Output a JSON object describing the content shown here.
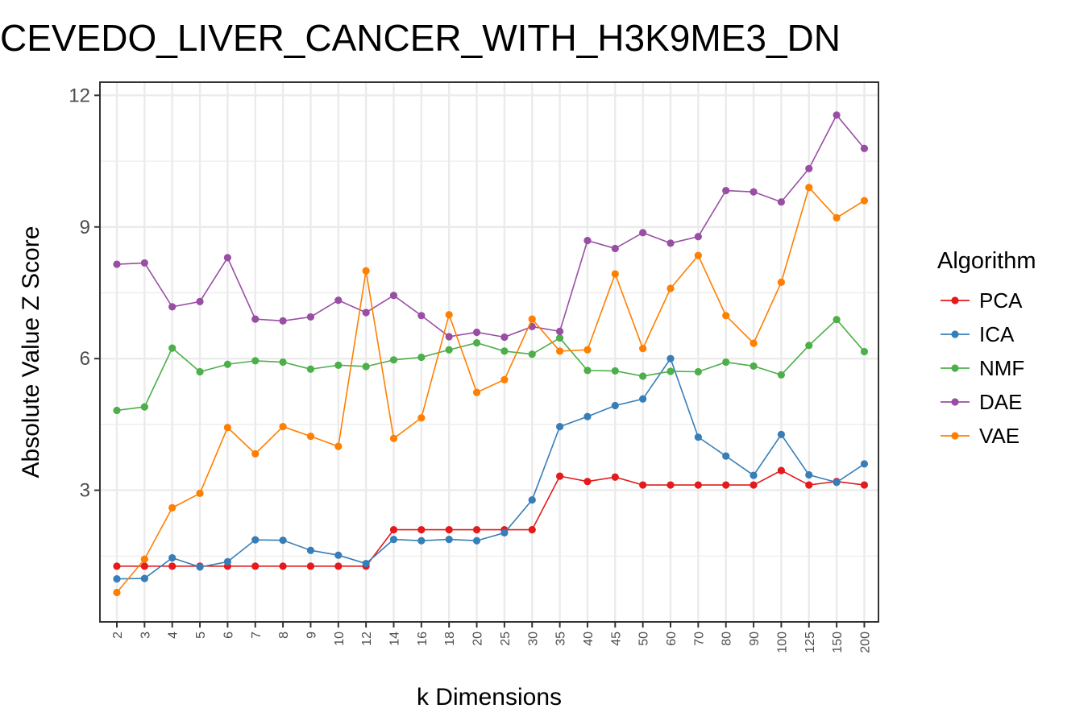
{
  "chart_data": {
    "type": "line",
    "title": "CEVEDO_LIVER_CANCER_WITH_H3K9ME3_DN",
    "xlabel": "k Dimensions",
    "ylabel": "Absolute Value Z Score",
    "categories": [
      "2",
      "3",
      "4",
      "5",
      "6",
      "7",
      "8",
      "9",
      "10",
      "12",
      "14",
      "16",
      "18",
      "20",
      "25",
      "30",
      "35",
      "40",
      "45",
      "50",
      "60",
      "70",
      "80",
      "90",
      "100",
      "125",
      "150",
      "200"
    ],
    "ylim": [
      0.0,
      12.3
    ],
    "yticks": [
      "3",
      "6",
      "9",
      "12"
    ],
    "grid": true,
    "legend": {
      "title": "Algorithm",
      "position": "right"
    },
    "series": [
      {
        "name": "PCA",
        "color": "#e41a1c",
        "values": [
          1.27,
          1.27,
          1.27,
          1.27,
          1.27,
          1.27,
          1.27,
          1.27,
          1.27,
          1.27,
          2.1,
          2.1,
          2.1,
          2.1,
          2.1,
          2.1,
          3.32,
          3.2,
          3.3,
          3.12,
          3.12,
          3.12,
          3.12,
          3.12,
          3.45,
          3.12,
          3.2,
          3.12
        ]
      },
      {
        "name": "ICA",
        "color": "#377eb8",
        "values": [
          0.98,
          0.99,
          1.46,
          1.25,
          1.37,
          1.87,
          1.86,
          1.63,
          1.52,
          1.33,
          1.88,
          1.85,
          1.88,
          1.85,
          2.03,
          2.78,
          4.45,
          4.68,
          4.93,
          5.08,
          6.0,
          4.21,
          3.78,
          3.34,
          4.27,
          3.35,
          3.18,
          3.6
        ]
      },
      {
        "name": "NMF",
        "color": "#4daf4a",
        "values": [
          4.82,
          4.9,
          6.24,
          5.7,
          5.87,
          5.95,
          5.92,
          5.76,
          5.85,
          5.82,
          5.97,
          6.03,
          6.2,
          6.36,
          6.17,
          6.1,
          6.47,
          5.73,
          5.72,
          5.6,
          5.71,
          5.7,
          5.92,
          5.83,
          5.63,
          6.3,
          6.89,
          6.16
        ]
      },
      {
        "name": "DAE",
        "color": "#984ea3",
        "values": [
          8.15,
          8.18,
          7.18,
          7.3,
          8.3,
          6.9,
          6.86,
          6.95,
          7.33,
          7.05,
          7.44,
          6.98,
          6.5,
          6.6,
          6.49,
          6.73,
          6.62,
          8.69,
          8.51,
          8.87,
          8.63,
          8.78,
          9.83,
          9.8,
          9.57,
          10.33,
          11.55,
          10.79
        ]
      },
      {
        "name": "VAE",
        "color": "#ff7f00",
        "values": [
          0.67,
          1.43,
          2.6,
          2.93,
          4.43,
          3.83,
          4.45,
          4.23,
          4.0,
          8.0,
          4.18,
          4.65,
          7.0,
          5.23,
          5.52,
          6.9,
          6.17,
          6.2,
          7.93,
          6.23,
          7.6,
          8.35,
          6.98,
          6.35,
          7.74,
          9.9,
          9.21,
          9.6
        ]
      }
    ]
  }
}
